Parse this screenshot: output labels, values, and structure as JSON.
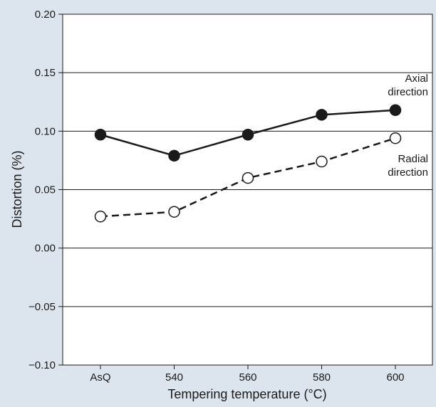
{
  "chart_data": {
    "type": "line",
    "title": "",
    "xlabel": "Tempering temperature (°C)",
    "ylabel": "Distortion (%)",
    "categories": [
      "AsQ",
      "540",
      "560",
      "580",
      "600"
    ],
    "ylim": [
      -0.1,
      0.2
    ],
    "yticks": [
      "0.20",
      "0.15",
      "0.10",
      "0.05",
      "0.00",
      "−0.05",
      "−0.10"
    ],
    "grid": "horizontal",
    "legend": "none",
    "series": [
      {
        "name": "",
        "annotation_lines": [
          "Axial",
          "direction"
        ],
        "values": [
          0.097,
          0.079,
          0.097,
          0.114,
          0.118
        ],
        "line_style": "solid",
        "marker": "filled-circle"
      },
      {
        "name": "",
        "annotation_lines": [
          "Radial",
          "direction"
        ],
        "values": [
          0.027,
          0.031,
          0.06,
          0.074,
          0.094
        ],
        "line_style": "dashed",
        "marker": "open-circle"
      }
    ],
    "colors": {
      "background": "#dce5ee",
      "plot_area": "#ffffff",
      "ink": "#1a1a1a"
    }
  }
}
